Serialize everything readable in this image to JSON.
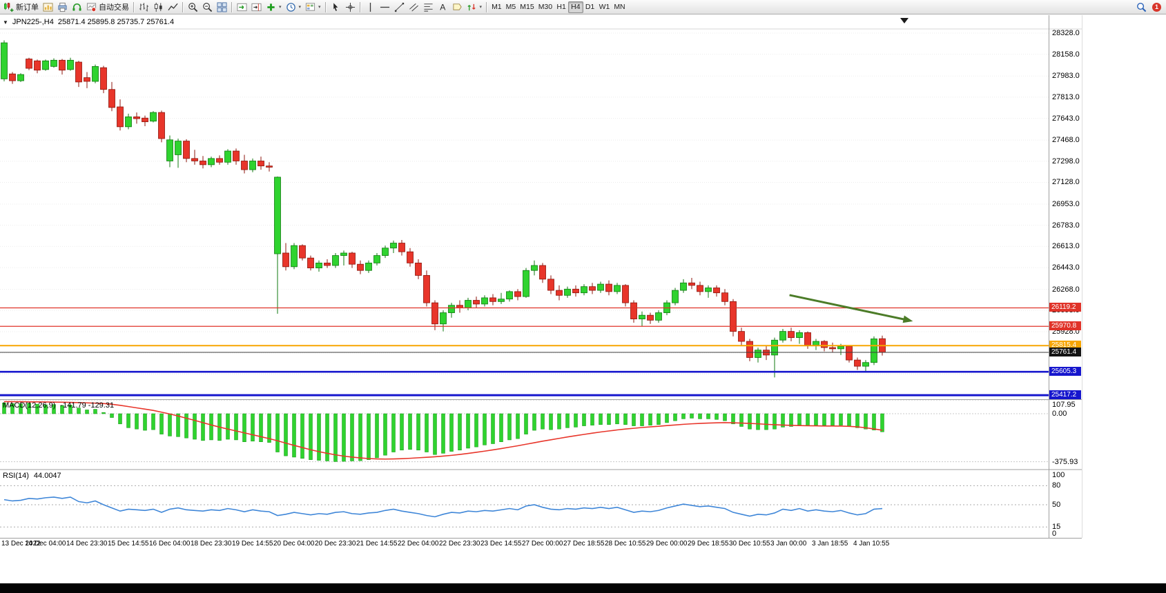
{
  "toolbar": {
    "new_order_label": "新订单",
    "autotrading_label": "自动交易",
    "timeframes": [
      "M1",
      "M5",
      "M15",
      "M30",
      "H1",
      "H4",
      "D1",
      "W1",
      "MN"
    ],
    "active_timeframe": "H4",
    "notification_count": "1"
  },
  "chart_data": [
    {
      "type": "candlestick",
      "symbol": "JPN225-",
      "period": "H4",
      "title": "JPN225-,H4",
      "ohlc_text": "25871.4 25895.8 25735.7 25761.4",
      "ylim": [
        25390,
        28360
      ],
      "price_axis_labels": [
        "28328.0",
        "28158.0",
        "27983.0",
        "27813.0",
        "27643.0",
        "27468.0",
        "27298.0",
        "27128.0",
        "26953.0",
        "26783.0",
        "26613.0",
        "26443.0",
        "26268.0",
        "26098.0",
        "25928.0",
        "25758.0",
        "25588.0",
        "25417.0"
      ],
      "h_lines": [
        {
          "price": 26119.2,
          "label": "26119.2",
          "color": "#e03228",
          "width": 1.3
        },
        {
          "price": 25970.8,
          "label": "25970.8",
          "color": "#e03228",
          "width": 1.3
        },
        {
          "price": 25815.4,
          "label": "25815.4",
          "color": "#f7a500",
          "width": 2
        },
        {
          "price": 25761.4,
          "label": "25761.4",
          "color": "#3c3c3c",
          "badge": "#141414",
          "width": 1
        },
        {
          "price": 25605.3,
          "label": "25605.3",
          "color": "#1616cd",
          "width": 2.6
        },
        {
          "price": 25417.2,
          "label": "25417.2",
          "color": "#1616cd",
          "width": 3
        }
      ],
      "arrow": {
        "from_bar": 94.8,
        "from_price": 26222,
        "to_bar": 109.7,
        "to_price": 26012,
        "color": "#4c7c28",
        "width": 3
      },
      "time_labels": [
        "13 Dec 2022",
        "14 Dec 04:00",
        "14 Dec 23:30",
        "15 Dec 14:55",
        "16 Dec 04:00",
        "18 Dec 23:30",
        "19 Dec 14:55",
        "20 Dec 04:00",
        "20 Dec 23:30",
        "21 Dec 14:55",
        "22 Dec 04:00",
        "22 Dec 23:30",
        "23 Dec 14:55",
        "27 Dec 00:00",
        "27 Dec 18:55",
        "28 Dec 10:55",
        "29 Dec 00:00",
        "29 Dec 18:55",
        "30 Dec 10:55",
        "3 Jan 00:00",
        "3 Jan 18:55",
        "4 Jan 10:55"
      ],
      "candles": [
        [
          27960,
          28270,
          27940,
          28250
        ],
        [
          28000,
          28015,
          27920,
          27945
        ],
        [
          27945,
          28005,
          27935,
          27995
        ],
        [
          28120,
          28130,
          28030,
          28045
        ],
        [
          28105,
          28115,
          28005,
          28030
        ],
        [
          28035,
          28115,
          28025,
          28105
        ],
        [
          28060,
          28125,
          28050,
          28110
        ],
        [
          28110,
          28120,
          27995,
          28030
        ],
        [
          28035,
          28130,
          28025,
          28110
        ],
        [
          28095,
          28105,
          27895,
          27935
        ],
        [
          27970,
          28015,
          27885,
          27940
        ],
        [
          27940,
          28075,
          27925,
          28060
        ],
        [
          28050,
          28065,
          27845,
          27875
        ],
        [
          27875,
          27935,
          27700,
          27730
        ],
        [
          27735,
          27795,
          27545,
          27575
        ],
        [
          27575,
          27680,
          27555,
          27655
        ],
        [
          27655,
          27690,
          27600,
          27640
        ],
        [
          27645,
          27665,
          27580,
          27615
        ],
        [
          27620,
          27700,
          27610,
          27690
        ],
        [
          27690,
          27705,
          27450,
          27480
        ],
        [
          27300,
          27505,
          27250,
          27470
        ],
        [
          27350,
          27480,
          27245,
          27460
        ],
        [
          27460,
          27475,
          27290,
          27320
        ],
        [
          27320,
          27390,
          27270,
          27300
        ],
        [
          27300,
          27340,
          27240,
          27270
        ],
        [
          27270,
          27335,
          27250,
          27320
        ],
        [
          27320,
          27345,
          27270,
          27290
        ],
        [
          27290,
          27395,
          27270,
          27380
        ],
        [
          27380,
          27400,
          27270,
          27300
        ],
        [
          27300,
          27350,
          27200,
          27230
        ],
        [
          27230,
          27320,
          27210,
          27300
        ],
        [
          27300,
          27335,
          27230,
          27260
        ],
        [
          27260,
          27290,
          27215,
          27250
        ],
        [
          26554,
          27175,
          26072,
          27170
        ],
        [
          26560,
          26640,
          26420,
          26450
        ],
        [
          26450,
          26640,
          26430,
          26620
        ],
        [
          26620,
          26630,
          26500,
          26520
        ],
        [
          26520,
          26540,
          26420,
          26440
        ],
        [
          26440,
          26500,
          26410,
          26480
        ],
        [
          26480,
          26510,
          26440,
          26460
        ],
        [
          26460,
          26560,
          26440,
          26540
        ],
        [
          26540,
          26580,
          26460,
          26560
        ],
        [
          26560,
          26570,
          26440,
          26470
        ],
        [
          26470,
          26500,
          26390,
          26420
        ],
        [
          26420,
          26500,
          26400,
          26480
        ],
        [
          26480,
          26560,
          26460,
          26540
        ],
        [
          26540,
          26620,
          26520,
          26600
        ],
        [
          26600,
          26660,
          26560,
          26640
        ],
        [
          26640,
          26665,
          26540,
          26570
        ],
        [
          26570,
          26600,
          26450,
          26480
        ],
        [
          26480,
          26510,
          26350,
          26380
        ],
        [
          26380,
          26420,
          26130,
          26160
        ],
        [
          26160,
          26180,
          25940,
          25990
        ],
        [
          25990,
          26100,
          25930,
          26080
        ],
        [
          26080,
          26160,
          26040,
          26140
        ],
        [
          26140,
          26180,
          26080,
          26120
        ],
        [
          26120,
          26200,
          26100,
          26180
        ],
        [
          26180,
          26210,
          26120,
          26150
        ],
        [
          26150,
          26220,
          26130,
          26200
        ],
        [
          26200,
          26230,
          26140,
          26170
        ],
        [
          26170,
          26240,
          26150,
          26190
        ],
        [
          26190,
          26260,
          26170,
          26250
        ],
        [
          26250,
          26270,
          26180,
          26210
        ],
        [
          26210,
          26440,
          26200,
          26420
        ],
        [
          26420,
          26500,
          26380,
          26460
        ],
        [
          26460,
          26480,
          26320,
          26350
        ],
        [
          26350,
          26380,
          26230,
          26260
        ],
        [
          26260,
          26300,
          26180,
          26220
        ],
        [
          26220,
          26290,
          26200,
          26270
        ],
        [
          26270,
          26300,
          26210,
          26240
        ],
        [
          26240,
          26310,
          26220,
          26290
        ],
        [
          26290,
          26320,
          26230,
          26260
        ],
        [
          26260,
          26330,
          26240,
          26310
        ],
        [
          26310,
          26340,
          26220,
          26250
        ],
        [
          26250,
          26320,
          26230,
          26300
        ],
        [
          26300,
          26310,
          26130,
          26160
        ],
        [
          26160,
          26180,
          26000,
          26030
        ],
        [
          26030,
          26090,
          25970,
          26060
        ],
        [
          26060,
          26080,
          25990,
          26020
        ],
        [
          26020,
          26100,
          26000,
          26080
        ],
        [
          26080,
          26180,
          26060,
          26160
        ],
        [
          26160,
          26280,
          26140,
          26260
        ],
        [
          26260,
          26350,
          26240,
          26320
        ],
        [
          26320,
          26360,
          26270,
          26300
        ],
        [
          26300,
          26330,
          26220,
          26250
        ],
        [
          26250,
          26300,
          26200,
          26280
        ],
        [
          26280,
          26300,
          26210,
          26240
        ],
        [
          26240,
          26270,
          26140,
          26170
        ],
        [
          26170,
          26190,
          25890,
          25930
        ],
        [
          25930,
          25960,
          25820,
          25850
        ],
        [
          25850,
          25870,
          25690,
          25720
        ],
        [
          25720,
          25800,
          25680,
          25780
        ],
        [
          25780,
          25820,
          25700,
          25740
        ],
        [
          25740,
          25880,
          25560,
          25860
        ],
        [
          25860,
          25950,
          25840,
          25930
        ],
        [
          25930,
          25960,
          25850,
          25880
        ],
        [
          25880,
          25940,
          25830,
          25920
        ],
        [
          25920,
          25930,
          25790,
          25820
        ],
        [
          25820,
          25870,
          25780,
          25850
        ],
        [
          25850,
          25860,
          25770,
          25800
        ],
        [
          25800,
          25840,
          25760,
          25790
        ],
        [
          25790,
          25830,
          25740,
          25810
        ],
        [
          25810,
          25820,
          25680,
          25700
        ],
        [
          25700,
          25720,
          25620,
          25650
        ],
        [
          25650,
          25700,
          25610,
          25680
        ],
        [
          25680,
          25890,
          25660,
          25870
        ],
        [
          25871.4,
          25895.8,
          25735.7,
          25761.4
        ]
      ]
    },
    {
      "type": "bar",
      "indicator": "MACD",
      "label": "MACD(12,26,9)",
      "values_text": "-141.79 -129.31",
      "scale_labels": [
        "107.95",
        "0.00",
        "-375.93"
      ],
      "ylim": [
        -375.93,
        107.95
      ],
      "histogram": [
        85,
        80,
        78,
        82,
        75,
        70,
        72,
        65,
        68,
        45,
        30,
        35,
        10,
        -30,
        -80,
        -110,
        -120,
        -130,
        -125,
        -160,
        -175,
        -180,
        -190,
        -200,
        -210,
        -205,
        -210,
        -200,
        -205,
        -220,
        -215,
        -220,
        -225,
        -300,
        -330,
        -340,
        -350,
        -360,
        -365,
        -370,
        -375,
        -373,
        -370,
        -368,
        -360,
        -345,
        -325,
        -300,
        -285,
        -280,
        -285,
        -300,
        -320,
        -310,
        -295,
        -285,
        -270,
        -260,
        -245,
        -235,
        -220,
        -205,
        -195,
        -160,
        -130,
        -120,
        -125,
        -120,
        -110,
        -105,
        -95,
        -90,
        -85,
        -85,
        -80,
        -85,
        -95,
        -95,
        -90,
        -85,
        -70,
        -55,
        -40,
        -35,
        -40,
        -40,
        -45,
        -55,
        -80,
        -100,
        -120,
        -125,
        -125,
        -120,
        -105,
        -100,
        -95,
        -95,
        -90,
        -90,
        -92,
        -90,
        -100,
        -110,
        -120,
        -128,
        -141.79
      ],
      "signal": [
        95,
        94,
        94,
        93,
        93,
        92,
        91,
        90,
        89,
        87,
        85,
        83,
        80,
        74,
        66,
        56,
        46,
        36,
        26,
        12,
        -2,
        -18,
        -35,
        -52,
        -70,
        -88,
        -105,
        -120,
        -135,
        -150,
        -165,
        -180,
        -195,
        -212,
        -230,
        -248,
        -265,
        -282,
        -297,
        -310,
        -322,
        -332,
        -340,
        -346,
        -351,
        -354,
        -355,
        -354,
        -352,
        -349,
        -345,
        -341,
        -337,
        -332,
        -326,
        -319,
        -311,
        -302,
        -293,
        -283,
        -273,
        -262,
        -251,
        -239,
        -227,
        -215,
        -204,
        -193,
        -182,
        -172,
        -162,
        -152,
        -143,
        -135,
        -127,
        -120,
        -114,
        -108,
        -103,
        -98,
        -93,
        -88,
        -83,
        -79,
        -76,
        -73,
        -71,
        -70,
        -71,
        -73,
        -76,
        -79,
        -83,
        -86,
        -89,
        -91,
        -93,
        -94,
        -95,
        -96,
        -96,
        -97,
        -99,
        -103,
        -110,
        -119,
        -129.31
      ]
    },
    {
      "type": "line",
      "indicator": "RSI",
      "label": "RSI(14)",
      "value_text": "44.0047",
      "scale_labels": [
        "100",
        "80",
        "50",
        "15",
        "0"
      ],
      "levels": [
        80,
        50,
        15
      ],
      "ylim": [
        0,
        100
      ],
      "values": [
        58,
        56,
        57,
        60,
        59,
        61,
        62,
        60,
        62,
        55,
        53,
        56,
        50,
        45,
        40,
        43,
        42,
        41,
        43,
        38,
        43,
        45,
        42,
        41,
        40,
        42,
        41,
        44,
        42,
        39,
        42,
        40,
        39,
        33,
        35,
        38,
        36,
        34,
        36,
        35,
        38,
        39,
        36,
        35,
        37,
        38,
        41,
        43,
        40,
        38,
        36,
        33,
        31,
        35,
        38,
        37,
        40,
        39,
        41,
        40,
        42,
        44,
        42,
        48,
        50,
        46,
        43,
        42,
        44,
        43,
        45,
        44,
        46,
        44,
        46,
        42,
        38,
        40,
        39,
        41,
        45,
        48,
        51,
        49,
        47,
        48,
        46,
        44,
        38,
        35,
        32,
        35,
        34,
        37,
        43,
        41,
        44,
        40,
        42,
        40,
        39,
        41,
        37,
        34,
        36,
        43,
        44.0
      ]
    }
  ]
}
